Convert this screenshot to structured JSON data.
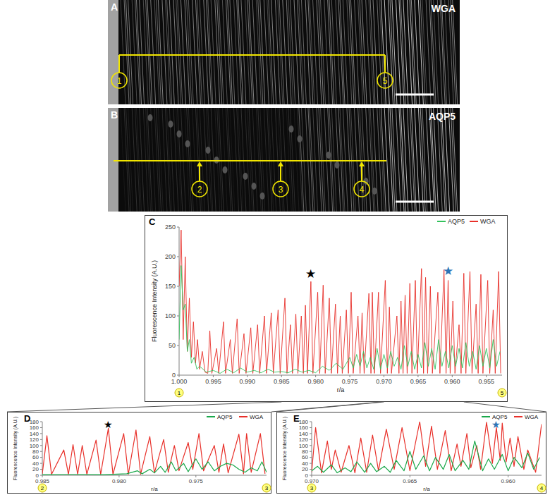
{
  "images": [
    {
      "letter": "A",
      "stain": "WGA",
      "markers": [
        "1",
        "5"
      ]
    },
    {
      "letter": "B",
      "stain": "AQP5",
      "markers": [
        "2",
        "3",
        "4"
      ]
    }
  ],
  "chart_data": [
    {
      "type": "line",
      "panel": "C",
      "x_label": "r/a",
      "y_label": "Fluorescence Intensity (A.U.)",
      "xlim": [
        1,
        0.9527
      ],
      "ylim": [
        0,
        250
      ],
      "xticks": [
        {
          "value": 1,
          "label": "1.000"
        },
        0.995,
        {
          "value": 0.99,
          "label": "0.990"
        },
        0.985,
        {
          "value": 0.98,
          "label": "0.980"
        },
        0.975,
        {
          "value": 0.97,
          "label": "0.970"
        },
        0.965,
        {
          "value": 0.96,
          "label": "0.960"
        },
        0.955
      ],
      "yticks": [
        0,
        50,
        100,
        150,
        200,
        250
      ],
      "grid": false,
      "legend": "upper right",
      "series": [
        {
          "name": "AQP5",
          "color": "#33c25c",
          "x": [
            1,
            0.9997,
            0.9994,
            0.9991,
            0.9988,
            0.9985,
            0.9982,
            0.9978,
            0.9974,
            0.997,
            0.996,
            0.995,
            0.994,
            0.993,
            0.992,
            0.991,
            0.99,
            0.989,
            0.988,
            0.987,
            0.986,
            0.985,
            0.984,
            0.983,
            0.982,
            0.981,
            0.98,
            0.979,
            0.978,
            0.977,
            0.976,
            0.975,
            0.9745,
            0.974,
            0.9735,
            0.973,
            0.9725,
            0.972,
            0.9715,
            0.971,
            0.9705,
            0.97,
            0.9695,
            0.969,
            0.9685,
            0.968,
            0.9675,
            0.967,
            0.9665,
            0.966,
            0.9655,
            0.965,
            0.9645,
            0.964,
            0.9635,
            0.963,
            0.9625,
            0.962,
            0.9615,
            0.961,
            0.9605,
            0.96,
            0.9595,
            0.959,
            0.9585,
            0.958,
            0.9575,
            0.957,
            0.9565,
            0.956,
            0.9555,
            0.955,
            0.9545,
            0.954,
            0.9535,
            0.953
          ],
          "values": [
            60,
            185,
            110,
            120,
            40,
            60,
            20,
            30,
            10,
            15,
            5,
            8,
            3,
            10,
            4,
            12,
            5,
            8,
            4,
            10,
            5,
            6,
            4,
            10,
            5,
            8,
            4,
            15,
            8,
            20,
            10,
            30,
            12,
            35,
            15,
            40,
            12,
            30,
            10,
            45,
            10,
            35,
            12,
            40,
            15,
            30,
            10,
            50,
            15,
            40,
            10,
            35,
            12,
            55,
            15,
            45,
            10,
            60,
            15,
            40,
            12,
            50,
            15,
            45,
            12,
            55,
            15,
            40,
            10,
            50,
            15,
            45,
            12,
            60,
            15,
            40
          ]
        },
        {
          "name": "WGA",
          "color": "#e8302a",
          "x": [
            1,
            0.9997,
            0.9994,
            0.9991,
            0.9988,
            0.9985,
            0.9982,
            0.9979,
            0.9976,
            0.9973,
            0.997,
            0.9966,
            0.9962,
            0.9958,
            0.9955,
            0.9952,
            0.9945,
            0.9942,
            0.9935,
            0.9932,
            0.9925,
            0.9922,
            0.9915,
            0.9912,
            0.9905,
            0.9902,
            0.9895,
            0.9892,
            0.9885,
            0.9882,
            0.9875,
            0.9872,
            0.9865,
            0.9862,
            0.9855,
            0.9852,
            0.9845,
            0.9842,
            0.9837,
            0.9834,
            0.9829,
            0.9826,
            0.9821,
            0.9818,
            0.9815,
            0.9812,
            0.9807,
            0.9804,
            0.9797,
            0.9794,
            0.9789,
            0.9786,
            0.978,
            0.9777,
            0.9771,
            0.9768,
            0.9764,
            0.9761,
            0.9755,
            0.9752,
            0.9748,
            0.9745,
            0.9738,
            0.9735,
            0.9732,
            0.9729,
            0.9722,
            0.9719,
            0.9717,
            0.9714,
            0.9708,
            0.9705,
            0.9698,
            0.9695,
            0.9692,
            0.9689,
            0.9681,
            0.9678,
            0.9675,
            0.9672,
            0.9669,
            0.9666,
            0.9662,
            0.9659,
            0.9654,
            0.9651,
            0.9645,
            0.9642,
            0.9639,
            0.9636,
            0.9632,
            0.9629,
            0.9621,
            0.9618,
            0.9612,
            0.9609,
            0.9606,
            0.9603,
            0.9599,
            0.9596,
            0.959,
            0.9587,
            0.9583,
            0.958,
            0.9574,
            0.9571,
            0.9565,
            0.9562,
            0.9558,
            0.9555,
            0.9548,
            0.9545,
            0.954,
            0.9537,
            0.9532,
            0.9529
          ],
          "values": [
            150,
            245,
            60,
            200,
            40,
            130,
            30,
            90,
            20,
            60,
            10,
            40,
            5,
            3,
            75,
            3,
            45,
            3,
            90,
            3,
            60,
            3,
            95,
            3,
            70,
            3,
            80,
            3,
            85,
            3,
            100,
            3,
            105,
            3,
            110,
            3,
            130,
            3,
            85,
            3,
            103,
            3,
            100,
            3,
            118,
            3,
            158,
            3,
            140,
            3,
            152,
            3,
            130,
            3,
            120,
            3,
            100,
            3,
            110,
            3,
            140,
            3,
            100,
            3,
            105,
            3,
            138,
            3,
            140,
            3,
            140,
            3,
            160,
            3,
            115,
            3,
            100,
            3,
            125,
            3,
            135,
            3,
            155,
            3,
            160,
            3,
            180,
            3,
            165,
            3,
            150,
            3,
            140,
            3,
            178,
            3,
            160,
            3,
            125,
            3,
            85,
            3,
            172,
            3,
            175,
            3,
            120,
            3,
            170,
            3,
            160,
            3,
            110,
            3,
            175,
            3
          ]
        }
      ],
      "annotations": [
        {
          "text": "★",
          "x": 0.9807,
          "y": 172,
          "color": "#000000"
        },
        {
          "text": "★",
          "x": 0.9606,
          "y": 176,
          "color": "#2e75b6"
        }
      ],
      "end_labels": [
        {
          "text": "1",
          "x": 1
        },
        {
          "text": "5",
          "x": 0.9527
        }
      ]
    },
    {
      "type": "line",
      "panel": "D",
      "x_label": "r/a",
      "y_label": "Fluorescence Intensity (A.U.)",
      "xlim": [
        0.985,
        0.9704
      ],
      "ylim": [
        0,
        180
      ],
      "xticks": [
        0.985,
        {
          "value": 0.98,
          "label": "0.980"
        },
        0.975
      ],
      "yticks": [
        0,
        20,
        40,
        60,
        80,
        100,
        120,
        140,
        160,
        180
      ],
      "grid": false,
      "legend": "upper right",
      "series": [
        {
          "name": "AQP5",
          "color": "#1aa84a",
          "x": [
            0.985,
            0.983,
            0.981,
            0.9795,
            0.9788,
            0.9785,
            0.978,
            0.9777,
            0.9773,
            0.977,
            0.9766,
            0.9763,
            0.9758,
            0.9755,
            0.975,
            0.9746,
            0.9742,
            0.9738,
            0.9734,
            0.973,
            0.9726,
            0.9722,
            0.9718,
            0.9714,
            0.971,
            0.9707,
            0.9704
          ],
          "values": [
            2,
            3,
            2,
            5,
            15,
            5,
            20,
            8,
            30,
            10,
            45,
            15,
            40,
            12,
            55,
            20,
            45,
            15,
            30,
            40,
            35,
            20,
            10,
            25,
            15,
            45,
            10
          ]
        },
        {
          "name": "WGA",
          "color": "#e8302a",
          "x": [
            0.985,
            0.9847,
            0.9844,
            0.9836,
            0.9833,
            0.983,
            0.9827,
            0.9824,
            0.9821,
            0.9815,
            0.9812,
            0.9807,
            0.9804,
            0.9797,
            0.9794,
            0.9789,
            0.9786,
            0.978,
            0.9777,
            0.9771,
            0.9768,
            0.9764,
            0.9761,
            0.9755,
            0.9752,
            0.9748,
            0.9745,
            0.9738,
            0.9735,
            0.9732,
            0.9729,
            0.9722,
            0.9719,
            0.9717,
            0.9714,
            0.9708,
            0.9705
          ],
          "values": [
            5,
            133,
            3,
            85,
            3,
            103,
            3,
            100,
            3,
            118,
            3,
            158,
            3,
            140,
            3,
            152,
            3,
            130,
            8,
            120,
            10,
            100,
            15,
            110,
            20,
            140,
            15,
            100,
            10,
            105,
            8,
            138,
            5,
            140,
            10,
            140,
            5
          ]
        }
      ],
      "annotations": [
        {
          "text": "★",
          "x": 0.9807,
          "y": 170,
          "color": "#000000"
        }
      ],
      "end_labels": [
        {
          "text": "2",
          "x": 0.985
        },
        {
          "text": "3",
          "x": 0.9704
        }
      ]
    },
    {
      "type": "line",
      "panel": "E",
      "x_label": "r/a",
      "y_label": "Fluorescence Intensity (A.U.)",
      "xlim": [
        0.97,
        0.9583
      ],
      "ylim": [
        0,
        180
      ],
      "xticks": [
        {
          "value": 0.97,
          "label": "0.970"
        },
        0.965,
        {
          "value": 0.96,
          "label": "0.960"
        }
      ],
      "yticks": [
        0,
        20,
        40,
        60,
        80,
        100,
        120,
        140,
        160,
        180
      ],
      "grid": false,
      "legend": "upper right",
      "series": [
        {
          "name": "AQP5",
          "color": "#1aa84a",
          "x": [
            0.97,
            0.9697,
            0.9694,
            0.969,
            0.9687,
            0.9683,
            0.968,
            0.9677,
            0.9673,
            0.967,
            0.9667,
            0.9663,
            0.966,
            0.9657,
            0.9653,
            0.965,
            0.9647,
            0.9643,
            0.964,
            0.9637,
            0.9633,
            0.963,
            0.9627,
            0.9623,
            0.962,
            0.9617,
            0.9613,
            0.961,
            0.9607,
            0.9603,
            0.96,
            0.9597,
            0.9593,
            0.959,
            0.9587,
            0.9584
          ],
          "values": [
            15,
            30,
            10,
            35,
            8,
            25,
            12,
            45,
            10,
            40,
            12,
            30,
            10,
            50,
            15,
            80,
            20,
            65,
            15,
            60,
            20,
            70,
            15,
            50,
            20,
            115,
            15,
            55,
            20,
            70,
            15,
            60,
            25,
            75,
            20,
            60
          ]
        },
        {
          "name": "WGA",
          "color": "#e8302a",
          "x": [
            0.97,
            0.9698,
            0.9695,
            0.9692,
            0.969,
            0.9688,
            0.9685,
            0.9681,
            0.9678,
            0.9675,
            0.9672,
            0.9669,
            0.9666,
            0.9662,
            0.9658,
            0.9654,
            0.965,
            0.9645,
            0.9642,
            0.9639,
            0.9636,
            0.9632,
            0.9629,
            0.9626,
            0.9624,
            0.9621,
            0.9619,
            0.9616,
            0.9614,
            0.9611,
            0.9608,
            0.9606,
            0.9604,
            0.9603,
            0.9601,
            0.9599,
            0.9597,
            0.9595,
            0.9592,
            0.959,
            0.9586,
            0.9583
          ],
          "values": [
            10,
            160,
            8,
            115,
            20,
            85,
            10,
            100,
            8,
            125,
            10,
            135,
            15,
            155,
            20,
            160,
            15,
            180,
            30,
            165,
            20,
            150,
            15,
            105,
            30,
            140,
            25,
            100,
            20,
            178,
            40,
            160,
            50,
            175,
            45,
            125,
            30,
            130,
            20,
            85,
            10,
            172
          ]
        }
      ],
      "annotations": [
        {
          "text": "★",
          "x": 0.9606,
          "y": 170,
          "color": "#2e75b6"
        }
      ],
      "end_labels": [
        {
          "text": "3",
          "x": 0.97
        },
        {
          "text": "4",
          "x": 0.9583
        }
      ]
    }
  ]
}
